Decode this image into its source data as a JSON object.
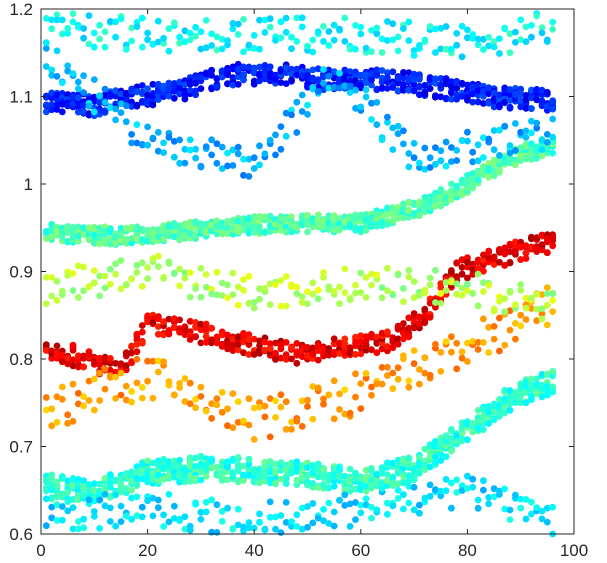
{
  "chart_data": {
    "type": "scatter",
    "title": "",
    "xlabel": "",
    "ylabel": "",
    "xlim": [
      0,
      100
    ],
    "ylim": [
      0.6,
      1.2
    ],
    "x_ticks": [
      "0",
      "20",
      "40",
      "60",
      "80",
      "100"
    ],
    "y_ticks": [
      "0.6",
      "0.7",
      "0.8",
      "0.9",
      "1",
      "1.1",
      "1.2"
    ],
    "grid": false,
    "colormap": "jet",
    "x_columns": {
      "start": 1,
      "end": 96,
      "step": 1
    },
    "bands": [
      {
        "color_value": 0.15,
        "spread": 0.012,
        "count": 6,
        "profile": [
          [
            0,
            1.095
          ],
          [
            10,
            1.09
          ],
          [
            18,
            1.1
          ],
          [
            25,
            1.105
          ],
          [
            35,
            1.125
          ],
          [
            45,
            1.125
          ],
          [
            55,
            1.118
          ],
          [
            65,
            1.12
          ],
          [
            75,
            1.11
          ],
          [
            85,
            1.1
          ],
          [
            96,
            1.095
          ]
        ]
      },
      {
        "color_value": 0.45,
        "spread": 0.01,
        "count": 7,
        "profile": [
          [
            0,
            0.945
          ],
          [
            15,
            0.94
          ],
          [
            30,
            0.948
          ],
          [
            45,
            0.955
          ],
          [
            60,
            0.955
          ],
          [
            72,
            0.975
          ],
          [
            80,
            1.0
          ],
          [
            88,
            1.03
          ],
          [
            96,
            1.045
          ]
        ]
      },
      {
        "color_value": 0.9,
        "spread": 0.012,
        "count": 5,
        "profile": [
          [
            0,
            0.815
          ],
          [
            8,
            0.8
          ],
          [
            15,
            0.785
          ],
          [
            20,
            0.84
          ],
          [
            30,
            0.83
          ],
          [
            40,
            0.815
          ],
          [
            50,
            0.805
          ],
          [
            58,
            0.815
          ],
          [
            65,
            0.82
          ],
          [
            72,
            0.85
          ],
          [
            78,
            0.9
          ],
          [
            85,
            0.915
          ],
          [
            96,
            0.935
          ]
        ]
      },
      {
        "color_value": 0.42,
        "spread": 0.014,
        "count": 8,
        "profile": [
          [
            0,
            0.655
          ],
          [
            10,
            0.648
          ],
          [
            20,
            0.67
          ],
          [
            30,
            0.675
          ],
          [
            40,
            0.673
          ],
          [
            50,
            0.668
          ],
          [
            60,
            0.66
          ],
          [
            70,
            0.675
          ],
          [
            80,
            0.72
          ],
          [
            88,
            0.755
          ],
          [
            96,
            0.775
          ]
        ]
      },
      {
        "color_value": 0.72,
        "spread": 0.025,
        "count": 2,
        "profile": [
          [
            0,
            0.74
          ],
          [
            20,
            0.78
          ],
          [
            40,
            0.73
          ],
          [
            60,
            0.76
          ],
          [
            75,
            0.8
          ],
          [
            96,
            0.86
          ]
        ]
      },
      {
        "color_value": 0.3,
        "spread": 0.02,
        "count": 2,
        "profile": [
          [
            0,
            1.15
          ],
          [
            20,
            1.05
          ],
          [
            40,
            1.02
          ],
          [
            55,
            1.13
          ],
          [
            70,
            1.03
          ],
          [
            96,
            1.06
          ]
        ]
      },
      {
        "color_value": 0.55,
        "spread": 0.02,
        "count": 2,
        "profile": [
          [
            0,
            0.88
          ],
          [
            20,
            0.9
          ],
          [
            40,
            0.875
          ],
          [
            60,
            0.885
          ],
          [
            80,
            0.88
          ],
          [
            96,
            0.86
          ]
        ]
      },
      {
        "color_value": 0.35,
        "spread": 0.02,
        "count": 2,
        "profile": [
          [
            0,
            0.62
          ],
          [
            20,
            0.63
          ],
          [
            40,
            0.615
          ],
          [
            60,
            0.63
          ],
          [
            80,
            0.65
          ],
          [
            96,
            0.62
          ]
        ]
      },
      {
        "color_value": 0.38,
        "spread": 0.02,
        "count": 2,
        "profile": [
          [
            0,
            1.18
          ],
          [
            20,
            1.17
          ],
          [
            40,
            1.17
          ],
          [
            60,
            1.17
          ],
          [
            80,
            1.16
          ],
          [
            96,
            1.18
          ]
        ]
      }
    ]
  }
}
